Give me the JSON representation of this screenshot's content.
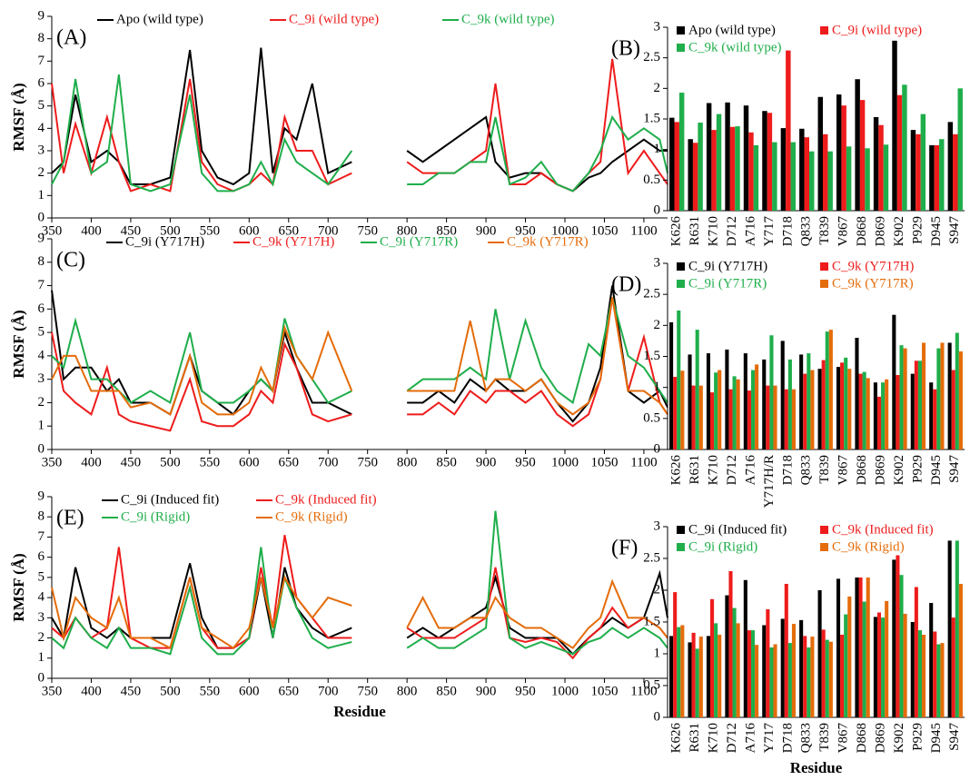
{
  "chart_data": [
    {
      "type": "line",
      "label": "(A)",
      "y_label": "RMSF (Å)",
      "xlim": [
        350,
        1130
      ],
      "ylim": [
        0,
        9
      ],
      "xticks": [
        350,
        400,
        450,
        500,
        550,
        600,
        650,
        700,
        750,
        800,
        850,
        900,
        950,
        1000,
        1050,
        1100
      ],
      "yticks": [
        0,
        1,
        2,
        3,
        4,
        5,
        6,
        7,
        8,
        9
      ],
      "legend_columns": 3,
      "x": [
        350,
        365,
        380,
        400,
        420,
        435,
        450,
        475,
        500,
        525,
        540,
        560,
        580,
        600,
        615,
        630,
        645,
        660,
        680,
        700,
        730,
        765,
        800,
        820,
        840,
        860,
        880,
        900,
        912,
        930,
        950,
        970,
        990,
        1010,
        1030,
        1045,
        1060,
        1080,
        1100,
        1120,
        1130
      ],
      "series": [
        {
          "name": "Apo (wild type)",
          "color": "#000000",
          "values": [
            2.0,
            2.5,
            5.5,
            2.5,
            3.0,
            2.5,
            1.5,
            1.5,
            1.8,
            7.5,
            3.0,
            1.8,
            1.5,
            2.0,
            7.6,
            2.0,
            4.0,
            3.5,
            6.0,
            2.0,
            2.5,
            null,
            3.0,
            2.5,
            3.0,
            3.5,
            4.0,
            4.5,
            2.5,
            1.8,
            2.0,
            2.0,
            1.5,
            1.2,
            1.8,
            2.0,
            2.5,
            3.0,
            3.5,
            3.0,
            3.0
          ]
        },
        {
          "name": "C_9i (wild type)",
          "color": "#ee1c1c",
          "values": [
            6.0,
            2.0,
            4.2,
            2.0,
            4.5,
            2.5,
            1.2,
            1.5,
            1.2,
            6.2,
            2.5,
            1.5,
            1.2,
            1.5,
            2.0,
            1.5,
            4.5,
            3.0,
            3.0,
            1.5,
            2.0,
            null,
            2.5,
            2.0,
            2.0,
            2.0,
            2.5,
            3.0,
            6.0,
            1.5,
            1.5,
            2.0,
            1.5,
            1.2,
            2.0,
            2.5,
            7.1,
            2.0,
            3.0,
            2.0,
            1.5
          ]
        },
        {
          "name": "C_9k (wild type)",
          "color": "#1fae4b",
          "values": [
            1.5,
            2.5,
            6.2,
            2.0,
            2.5,
            6.4,
            1.5,
            1.2,
            1.5,
            5.5,
            2.0,
            1.2,
            1.2,
            1.5,
            2.5,
            1.5,
            3.5,
            2.5,
            2.0,
            1.5,
            3.0,
            null,
            1.5,
            1.5,
            2.0,
            2.0,
            2.5,
            2.5,
            4.5,
            1.5,
            1.8,
            2.5,
            1.5,
            1.2,
            2.0,
            3.0,
            4.5,
            3.5,
            4.0,
            3.5,
            2.0
          ]
        }
      ]
    },
    {
      "type": "bar",
      "label": "(B)",
      "ylim": [
        0,
        3
      ],
      "yticks": [
        0,
        0.5,
        1,
        1.5,
        2,
        2.5,
        3
      ],
      "legend_columns": 2,
      "categories": [
        "K626",
        "R631",
        "K710",
        "D712",
        "A716",
        "Y717",
        "D718",
        "Q833",
        "T839",
        "V867",
        "D868",
        "D869",
        "K902",
        "P929",
        "D945",
        "S947"
      ],
      "series": [
        {
          "name": "Apo (wild type)",
          "color": "#000000",
          "values": [
            1.52,
            1.17,
            1.76,
            1.77,
            1.72,
            1.63,
            1.35,
            1.34,
            1.86,
            1.9,
            2.15,
            1.53,
            2.78,
            1.32,
            1.07,
            1.45
          ]
        },
        {
          "name": "C_9i (wild type)",
          "color": "#ee1c1c",
          "values": [
            1.45,
            1.11,
            1.32,
            1.37,
            1.28,
            1.6,
            2.62,
            1.2,
            1.25,
            1.72,
            1.81,
            1.4,
            1.89,
            1.25,
            1.07,
            1.25
          ]
        },
        {
          "name": "C_9k (wild type)",
          "color": "#1fae4b",
          "values": [
            1.93,
            1.44,
            1.58,
            1.38,
            1.07,
            1.12,
            1.12,
            0.97,
            0.97,
            1.05,
            1.02,
            1.08,
            2.06,
            1.58,
            1.17,
            2.0
          ]
        }
      ]
    },
    {
      "type": "line",
      "label": "(C)",
      "y_label": "RMSF (Å)",
      "xlim": [
        350,
        1130
      ],
      "ylim": [
        0,
        9
      ],
      "xticks": [
        350,
        400,
        450,
        500,
        550,
        600,
        650,
        700,
        750,
        800,
        850,
        900,
        950,
        1000,
        1050,
        1100
      ],
      "yticks": [
        0,
        1,
        2,
        3,
        4,
        5,
        6,
        7,
        8,
        9
      ],
      "legend_columns": 4,
      "x": [
        350,
        365,
        380,
        400,
        420,
        435,
        450,
        475,
        500,
        525,
        540,
        560,
        580,
        600,
        615,
        630,
        645,
        660,
        680,
        700,
        730,
        765,
        800,
        820,
        840,
        860,
        880,
        900,
        912,
        930,
        950,
        970,
        990,
        1010,
        1030,
        1045,
        1060,
        1080,
        1100,
        1120,
        1130
      ],
      "series": [
        {
          "name": "C_9i (Y717H)",
          "color": "#000000",
          "values": [
            6.8,
            3.0,
            3.5,
            3.5,
            2.5,
            3.0,
            2.0,
            2.0,
            1.5,
            4.0,
            2.5,
            2.0,
            1.5,
            2.5,
            3.0,
            2.5,
            5.0,
            3.5,
            2.0,
            2.0,
            1.5,
            null,
            2.0,
            2.0,
            2.5,
            2.0,
            3.0,
            2.5,
            3.0,
            2.5,
            2.5,
            3.0,
            2.0,
            1.2,
            2.0,
            3.5,
            7.0,
            2.5,
            2.0,
            2.5,
            1.8
          ]
        },
        {
          "name": "C_9k (Y717H)",
          "color": "#ee1c1c",
          "values": [
            5.0,
            2.5,
            2.0,
            1.5,
            3.5,
            1.5,
            1.2,
            1.0,
            0.8,
            3.0,
            1.2,
            1.0,
            1.0,
            1.5,
            2.5,
            2.0,
            4.5,
            3.5,
            1.5,
            1.2,
            1.5,
            null,
            1.5,
            1.5,
            2.0,
            1.5,
            2.5,
            2.0,
            2.5,
            2.5,
            2.0,
            2.5,
            1.5,
            1.0,
            1.5,
            3.0,
            6.5,
            2.5,
            4.8,
            2.0,
            1.5
          ]
        },
        {
          "name": "C_9i (Y717R)",
          "color": "#1fae4b",
          "values": [
            4.0,
            3.5,
            5.5,
            3.0,
            3.0,
            2.5,
            2.0,
            2.5,
            2.0,
            5.0,
            2.5,
            2.0,
            2.0,
            2.5,
            3.0,
            2.5,
            5.6,
            4.0,
            3.0,
            2.0,
            2.5,
            null,
            2.5,
            3.0,
            3.0,
            3.0,
            3.5,
            3.0,
            6.0,
            3.0,
            5.5,
            3.5,
            2.5,
            2.0,
            4.5,
            4.0,
            6.5,
            4.0,
            3.5,
            2.5,
            2.0
          ]
        },
        {
          "name": "C_9k (Y717R)",
          "color": "#e46c0a",
          "values": [
            3.0,
            4.0,
            4.0,
            2.5,
            2.5,
            2.5,
            1.8,
            2.0,
            1.5,
            4.0,
            2.0,
            1.5,
            1.5,
            2.0,
            3.5,
            2.5,
            5.2,
            4.0,
            3.0,
            5.0,
            2.5,
            null,
            2.5,
            2.5,
            2.5,
            2.5,
            5.5,
            2.5,
            3.0,
            3.0,
            2.5,
            3.0,
            2.0,
            1.5,
            2.0,
            3.0,
            6.5,
            2.5,
            2.5,
            2.0,
            1.5
          ]
        }
      ]
    },
    {
      "type": "bar",
      "label": "(D)",
      "ylim": [
        0,
        3
      ],
      "yticks": [
        0,
        0.5,
        1,
        1.5,
        2,
        2.5,
        3
      ],
      "legend_columns": 2,
      "categories": [
        "K626",
        "R631",
        "K710",
        "D712",
        "A716",
        "Y717H/R",
        "D718",
        "Q833",
        "T839",
        "V867",
        "D868",
        "D869",
        "K902",
        "P929",
        "D945",
        "S947"
      ],
      "series": [
        {
          "name": "C_9i (Y717H)",
          "color": "#000000",
          "values": [
            2.05,
            1.53,
            1.55,
            1.61,
            1.55,
            1.45,
            1.75,
            1.53,
            1.3,
            1.33,
            1.8,
            1.08,
            2.17,
            1.22,
            1.08,
            1.72
          ]
        },
        {
          "name": "C_9k (Y717H)",
          "color": "#ee1c1c",
          "values": [
            1.17,
            1.03,
            0.92,
            0.97,
            0.95,
            1.03,
            0.97,
            1.22,
            1.44,
            1.4,
            1.22,
            0.85,
            1.2,
            1.43,
            0.97,
            1.28
          ]
        },
        {
          "name": "C_9i (Y717R)",
          "color": "#1fae4b",
          "values": [
            2.24,
            1.93,
            1.24,
            1.18,
            1.28,
            1.84,
            1.45,
            1.55,
            1.9,
            1.48,
            1.25,
            1.08,
            1.68,
            1.43,
            1.63,
            1.88
          ]
        },
        {
          "name": "C_9k (Y717R)",
          "color": "#e46c0a",
          "values": [
            1.27,
            1.03,
            1.28,
            1.13,
            1.37,
            1.03,
            0.97,
            1.28,
            1.93,
            1.3,
            1.15,
            1.13,
            1.63,
            1.72,
            1.72,
            1.58
          ]
        }
      ]
    },
    {
      "type": "line",
      "label": "(E)",
      "y_label": "RMSF (Å)",
      "x_label": "Residue",
      "xlim": [
        350,
        1130
      ],
      "ylim": [
        0,
        9
      ],
      "xticks": [
        350,
        400,
        450,
        500,
        550,
        600,
        650,
        700,
        750,
        800,
        850,
        900,
        950,
        1000,
        1050,
        1100
      ],
      "yticks": [
        0,
        1,
        2,
        3,
        4,
        5,
        6,
        7,
        8,
        9
      ],
      "legend_columns": 2,
      "x": [
        350,
        365,
        380,
        400,
        420,
        435,
        450,
        475,
        500,
        525,
        540,
        560,
        580,
        600,
        615,
        630,
        645,
        660,
        680,
        700,
        730,
        765,
        800,
        820,
        840,
        860,
        880,
        900,
        912,
        930,
        950,
        970,
        990,
        1010,
        1030,
        1045,
        1060,
        1080,
        1100,
        1120,
        1130
      ],
      "series": [
        {
          "name": "C_9i (Induced fit)",
          "color": "#000000",
          "values": [
            3.0,
            2.0,
            5.5,
            2.5,
            2.0,
            2.5,
            2.0,
            2.0,
            2.0,
            5.7,
            3.0,
            1.5,
            1.5,
            2.0,
            5.0,
            2.0,
            5.5,
            3.5,
            2.5,
            2.0,
            2.5,
            null,
            2.0,
            2.5,
            2.0,
            2.5,
            3.0,
            3.5,
            5.0,
            2.5,
            2.0,
            2.0,
            2.0,
            1.2,
            2.0,
            2.5,
            3.0,
            2.5,
            3.0,
            5.2,
            3.0
          ]
        },
        {
          "name": "C_9k (Induced fit)",
          "color": "#ee1c1c",
          "values": [
            2.5,
            2.0,
            3.0,
            2.0,
            2.5,
            6.5,
            2.0,
            1.5,
            1.5,
            5.0,
            2.5,
            1.5,
            1.5,
            2.0,
            5.5,
            2.5,
            7.1,
            4.0,
            3.0,
            2.0,
            2.0,
            null,
            2.5,
            2.0,
            2.0,
            2.0,
            2.5,
            3.0,
            5.5,
            2.0,
            1.8,
            2.0,
            1.8,
            1.0,
            2.0,
            2.5,
            3.5,
            2.5,
            3.0,
            2.5,
            2.0
          ]
        },
        {
          "name": "C_9i (Rigid)",
          "color": "#1fae4b",
          "values": [
            2.0,
            1.5,
            3.0,
            2.0,
            1.5,
            2.5,
            1.5,
            1.5,
            1.2,
            4.5,
            2.0,
            1.2,
            1.2,
            2.0,
            6.5,
            2.0,
            5.0,
            3.5,
            2.0,
            1.5,
            1.8,
            null,
            1.5,
            2.0,
            1.5,
            1.5,
            2.0,
            2.5,
            8.3,
            2.0,
            1.5,
            1.8,
            1.5,
            1.2,
            1.8,
            2.0,
            2.5,
            2.0,
            2.5,
            2.0,
            1.5
          ]
        },
        {
          "name": "C_9k (Rigid)",
          "color": "#e46c0a",
          "values": [
            4.5,
            2.0,
            4.0,
            3.0,
            2.5,
            4.0,
            2.0,
            2.0,
            1.5,
            5.0,
            2.5,
            2.0,
            1.5,
            2.5,
            5.0,
            2.5,
            5.0,
            4.0,
            3.0,
            4.0,
            3.6,
            null,
            2.5,
            4.0,
            2.5,
            2.5,
            3.0,
            3.0,
            4.0,
            3.0,
            2.5,
            2.5,
            2.0,
            1.5,
            2.5,
            3.0,
            4.8,
            3.0,
            3.0,
            2.5,
            2.0
          ]
        }
      ]
    },
    {
      "type": "bar",
      "label": "(F)",
      "x_label": "Residue",
      "ylim": [
        0,
        3
      ],
      "yticks": [
        0,
        0.5,
        1,
        1.5,
        2,
        2.5,
        3
      ],
      "legend_columns": 2,
      "categories": [
        "K626",
        "R631",
        "K710",
        "D712",
        "A716",
        "Y717",
        "D718",
        "Q833",
        "T839",
        "V867",
        "D868",
        "D869",
        "K902",
        "P929",
        "D945",
        "S947"
      ],
      "series": [
        {
          "name": "C_9i (Induced fit)",
          "color": "#000000",
          "values": [
            1.28,
            1.18,
            1.28,
            1.92,
            2.16,
            1.45,
            1.55,
            1.53,
            2.0,
            2.18,
            2.2,
            1.58,
            2.48,
            1.5,
            1.8,
            2.78
          ]
        },
        {
          "name": "C_9k (Induced fit)",
          "color": "#ee1c1c",
          "values": [
            1.97,
            1.33,
            1.86,
            2.3,
            1.37,
            1.7,
            2.1,
            1.28,
            1.38,
            1.3,
            2.2,
            1.65,
            2.55,
            2.05,
            1.35,
            1.57
          ]
        },
        {
          "name": "C_9i (Rigid)",
          "color": "#1fae4b",
          "values": [
            1.42,
            1.08,
            1.48,
            1.72,
            1.37,
            1.1,
            1.17,
            1.1,
            1.22,
            1.62,
            1.82,
            1.57,
            2.24,
            1.37,
            1.15,
            2.78
          ]
        },
        {
          "name": "C_9k (Rigid)",
          "color": "#e46c0a",
          "values": [
            1.45,
            1.27,
            1.3,
            1.48,
            1.14,
            1.15,
            1.47,
            1.27,
            1.19,
            1.9,
            2.2,
            1.83,
            1.63,
            1.3,
            1.17,
            2.1
          ]
        }
      ]
    }
  ]
}
